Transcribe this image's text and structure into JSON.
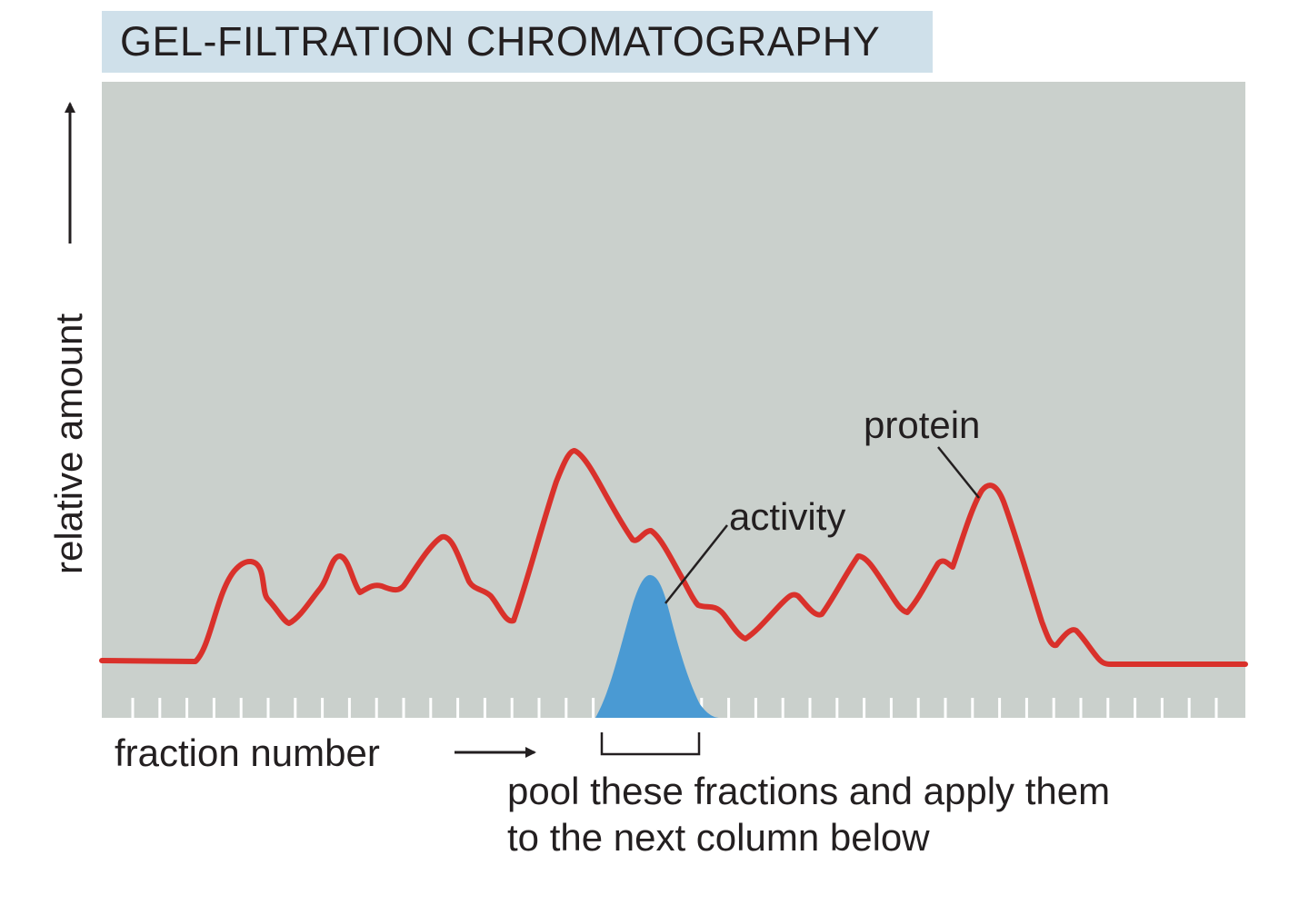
{
  "title": "GEL-FILTRATION CHROMATOGRAPHY",
  "y_axis_label": "relative amount",
  "x_axis_label": "fraction number",
  "curves": {
    "protein": {
      "label": "protein",
      "color": "#d9312b"
    },
    "activity": {
      "label": "activity",
      "color": "#4a9ad3"
    }
  },
  "pool_note": {
    "line1": "pool these fractions and apply them",
    "line2": "to the next column below"
  },
  "colors": {
    "panel": "#cad0cc",
    "title_bg": "#cfe0ea",
    "text": "#231f20",
    "ticks": "#ffffff"
  }
}
